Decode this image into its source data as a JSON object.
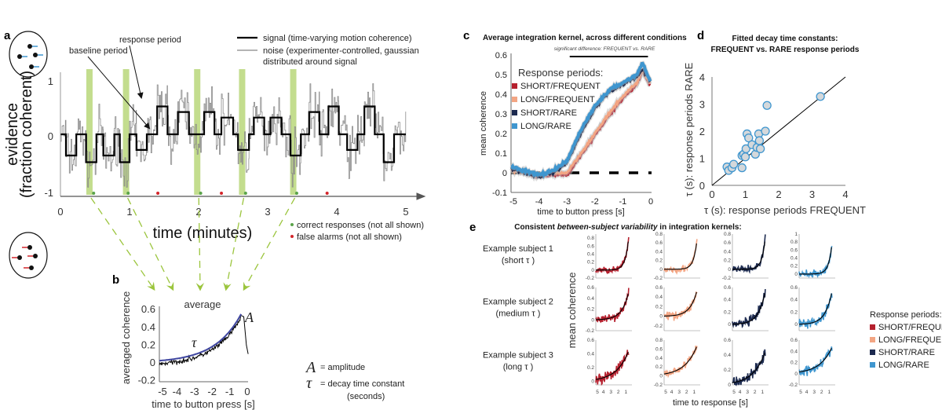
{
  "colors": {
    "short_frequent": "#b5202e",
    "long_frequent": "#f3a583",
    "short_rare": "#1c2a4f",
    "long_rare": "#3f96cf",
    "highlight": "#b9d77a",
    "arrow": "#9bc53d",
    "correct": "#5aa34a",
    "false_alarm": "#d3262b",
    "fit": "#3f46a0"
  },
  "panel_labels": {
    "a": "a",
    "b": "b",
    "c": "c",
    "d": "d",
    "e": "e"
  },
  "chart_data": [
    {
      "id": "a",
      "type": "line",
      "ylabel": "evidence",
      "ylabel2": "(fraction coherent)",
      "xlabel": "time (minutes)",
      "xticks": [
        "0",
        "1",
        "2",
        "3",
        "4",
        "5"
      ],
      "yticks": [
        "1",
        "0",
        "-1"
      ],
      "xlim": [
        0,
        5
      ],
      "ylim": [
        -1,
        1
      ],
      "legend": {
        "signal": "signal (time-varying motion coherence)",
        "noise_line1": "noise (experimenter-controlled, gaussian",
        "noise_line2": "distributed around signal"
      },
      "annotations": {
        "response_period": "response period",
        "baseline_period": "baseline period"
      },
      "dot_legend": {
        "correct": "correct responses (not all shown)",
        "false_alarm": "false alarms (not all shown)"
      },
      "signal_steps": [
        [
          0,
          0
        ],
        [
          0.08,
          -0.38
        ],
        [
          0.23,
          0
        ],
        [
          0.37,
          -0.5
        ],
        [
          0.52,
          0
        ],
        [
          0.62,
          -0.38
        ],
        [
          0.78,
          0
        ],
        [
          0.86,
          -0.5
        ],
        [
          1.0,
          0
        ],
        [
          1.1,
          -0.28
        ],
        [
          1.25,
          0
        ],
        [
          1.4,
          0.5
        ],
        [
          1.55,
          0
        ],
        [
          1.7,
          0.4
        ],
        [
          1.86,
          0
        ],
        [
          2.08,
          0.4
        ],
        [
          2.23,
          0
        ],
        [
          2.33,
          0.3
        ],
        [
          2.5,
          0
        ],
        [
          2.57,
          -0.28
        ],
        [
          2.73,
          0
        ],
        [
          2.8,
          0.3
        ],
        [
          2.95,
          0
        ],
        [
          3.04,
          0.3
        ],
        [
          3.2,
          0
        ],
        [
          3.33,
          -0.38
        ],
        [
          3.48,
          0
        ],
        [
          3.6,
          0.4
        ],
        [
          3.75,
          0
        ],
        [
          3.88,
          0.5
        ],
        [
          4.03,
          0
        ],
        [
          4.15,
          -0.28
        ],
        [
          4.3,
          0
        ],
        [
          4.4,
          0.5
        ],
        [
          4.55,
          0
        ],
        [
          4.68,
          -0.5
        ],
        [
          4.83,
          0
        ],
        [
          5.0,
          0
        ]
      ],
      "response_windows": [
        0.42,
        0.95,
        1.98,
        2.63,
        3.37
      ],
      "correct_responses": [
        0.48,
        0.98,
        2.03,
        2.68,
        3.42
      ],
      "false_alarms": [
        1.41,
        2.33,
        3.86
      ]
    },
    {
      "id": "b",
      "type": "line",
      "title": "average",
      "ylabel": "averaged coherence",
      "xlabel": "time to button press [s]",
      "xticks": [
        "-5",
        "-4",
        "-3",
        "-2",
        "-1",
        "0"
      ],
      "yticks": [
        "0.6",
        "0.4",
        "0.2",
        "0",
        "-0.2"
      ],
      "xlim": [
        -5,
        0
      ],
      "ylim": [
        -0.2,
        0.6
      ],
      "fit": {
        "amplitude": 0.55,
        "tau_s": 1.5
      },
      "symbols": {
        "A": "A",
        "tau": "τ"
      },
      "legend": {
        "A_desc": "= amplitude",
        "tau_desc": "= decay time constant",
        "tau_unit": "(seconds)"
      }
    },
    {
      "id": "c",
      "type": "line",
      "title": "Average integration kernel, across different conditions",
      "annotation": "significant difference: FREQUENT vs. RARE",
      "significance_range": [
        -2.9,
        -0.1
      ],
      "ylabel": "mean coherence",
      "xlabel": "time to button press [s]",
      "xticks": [
        "-5",
        "-4",
        "-3",
        "-2",
        "-1",
        "0"
      ],
      "yticks": [
        "0.6",
        "0.5",
        "0.4",
        "0.3",
        "0.2",
        "0.1",
        "0",
        "-0.1"
      ],
      "xlim": [
        -5,
        0
      ],
      "ylim": [
        -0.1,
        0.6
      ],
      "legend_title": "Response periods:",
      "x": [
        -5,
        -4.5,
        -4,
        -3.5,
        -3,
        -2.5,
        -2,
        -1.5,
        -1,
        -0.5,
        -0.3,
        0
      ],
      "series": [
        {
          "name": "SHORT/FREQUENT",
          "color_key": "short_frequent",
          "values": [
            0.02,
            0.0,
            -0.02,
            -0.01,
            -0.01,
            0.09,
            0.19,
            0.29,
            0.38,
            0.45,
            0.52,
            0.44
          ]
        },
        {
          "name": "LONG/FREQUENT",
          "color_key": "long_frequent",
          "values": [
            0.01,
            0.0,
            -0.01,
            0.0,
            0.0,
            0.1,
            0.2,
            0.3,
            0.39,
            0.46,
            0.52,
            0.45
          ]
        },
        {
          "name": "SHORT/RARE",
          "color_key": "short_rare",
          "values": [
            0.02,
            0.0,
            -0.02,
            0.0,
            0.05,
            0.2,
            0.33,
            0.41,
            0.45,
            0.49,
            0.53,
            0.46
          ]
        },
        {
          "name": "LONG/RARE",
          "color_key": "long_rare",
          "values": [
            0.03,
            0.01,
            -0.01,
            0.01,
            0.06,
            0.22,
            0.34,
            0.42,
            0.46,
            0.5,
            0.56,
            0.46
          ]
        }
      ]
    },
    {
      "id": "d",
      "type": "scatter",
      "title_line1": "Fitted decay time constants:",
      "title_line2": "FREQUENT vs. RARE response periods",
      "xlabel": "τ (s): response periods FREQUENT",
      "ylabel": "τ (s): response periods RARE",
      "xticks": [
        "0",
        "1",
        "2",
        "3",
        "4"
      ],
      "yticks": [
        "0",
        "1",
        "2",
        "3",
        "4"
      ],
      "xlim": [
        0,
        4
      ],
      "ylim": [
        0,
        4
      ],
      "points": [
        [
          0.45,
          0.68
        ],
        [
          0.5,
          0.55
        ],
        [
          0.6,
          0.65
        ],
        [
          0.65,
          0.78
        ],
        [
          0.9,
          0.65
        ],
        [
          0.9,
          1.1
        ],
        [
          0.95,
          1.15
        ],
        [
          1.0,
          1.05
        ],
        [
          1.02,
          1.35
        ],
        [
          1.05,
          1.9
        ],
        [
          1.1,
          1.75
        ],
        [
          1.2,
          1.5
        ],
        [
          1.3,
          1.15
        ],
        [
          1.35,
          1.4
        ],
        [
          1.4,
          1.9
        ],
        [
          1.45,
          1.35
        ],
        [
          1.42,
          1.65
        ],
        [
          1.6,
          2.0
        ],
        [
          1.65,
          2.95
        ],
        [
          3.25,
          3.28
        ]
      ]
    },
    {
      "id": "e",
      "type": "line",
      "title_pre": "Consistent ",
      "title_em": "between-subject variability",
      "title_post": " in integration kernels:",
      "ylabel": "mean coherence",
      "xlabel": "time to response [s]",
      "xticks": [
        "5",
        "4",
        "3",
        "2",
        "1"
      ],
      "legend_title": "Response periods:",
      "legend": [
        "SHORT/FREQUENT",
        "LONG/FREQUENT",
        "SHORT/RARE",
        "LONG/RARE"
      ],
      "rows": [
        {
          "label": "Example subject 1",
          "sub": "(short τ )",
          "tau_s": 0.45,
          "panels": [
            {
              "ylim": [
                -0.2,
                0.9
              ],
              "yticks": [
                "-0.2",
                "0",
                "0.2",
                "0.4",
                "0.6",
                "0.8"
              ],
              "amp": 0.85
            },
            {
              "ylim": [
                -0.2,
                0.8
              ],
              "yticks": [
                "-0.2",
                "0",
                "0.2",
                "0.4",
                "0.6",
                "0.8"
              ],
              "amp": 0.7
            },
            {
              "ylim": [
                -0.2,
                0.8
              ],
              "yticks": [
                "-0.2",
                "0",
                "0.2",
                "0.4",
                "0.6",
                "0.8"
              ],
              "amp": 0.75
            },
            {
              "ylim": [
                -0.1,
                1
              ],
              "yticks": [
                "0",
                "0.2",
                "0.4",
                "0.6",
                "0.8",
                "1"
              ],
              "amp": 0.8
            }
          ]
        },
        {
          "label": "Example subject 2",
          "sub": "(medium τ )",
          "tau_s": 0.9,
          "panels": [
            {
              "ylim": [
                -0.2,
                0.6
              ],
              "yticks": [
                "-0.2",
                "0",
                "0.2",
                "0.4",
                "0.6"
              ],
              "amp": 0.53
            },
            {
              "ylim": [
                -0.3,
                0.6
              ],
              "yticks": [
                "-0.2",
                "0",
                "0.2",
                "0.4",
                "0.6"
              ],
              "amp": 0.55
            },
            {
              "ylim": [
                -0.1,
                0.6
              ],
              "yticks": [
                "0",
                "0.2",
                "0.4",
                "0.6"
              ],
              "amp": 0.55
            },
            {
              "ylim": [
                -0.1,
                0.6
              ],
              "yticks": [
                "0",
                "0.2",
                "0.4",
                "0.6"
              ],
              "amp": 0.55
            }
          ]
        },
        {
          "label": "Example subject 3",
          "sub": "(long τ )",
          "tau_s": 1.6,
          "panels": [
            {
              "ylim": [
                -0.05,
                0.6
              ],
              "yticks": [
                "0",
                "0.2",
                "0.4",
                "0.6"
              ],
              "amp": 0.45
            },
            {
              "ylim": [
                -0.2,
                0.8
              ],
              "yticks": [
                "-0.2",
                "0",
                "0.2",
                "0.4",
                "0.6",
                "0.8"
              ],
              "amp": 0.68
            },
            {
              "ylim": [
                0,
                0.6
              ],
              "yticks": [
                "0",
                "0.2",
                "0.4",
                "0.6"
              ],
              "amp": 0.45
            },
            {
              "ylim": [
                -0.2,
                0.6
              ],
              "yticks": [
                "-0.2",
                "0",
                "0.2",
                "0.4",
                "0.6"
              ],
              "amp": 0.48
            }
          ]
        }
      ]
    }
  ]
}
